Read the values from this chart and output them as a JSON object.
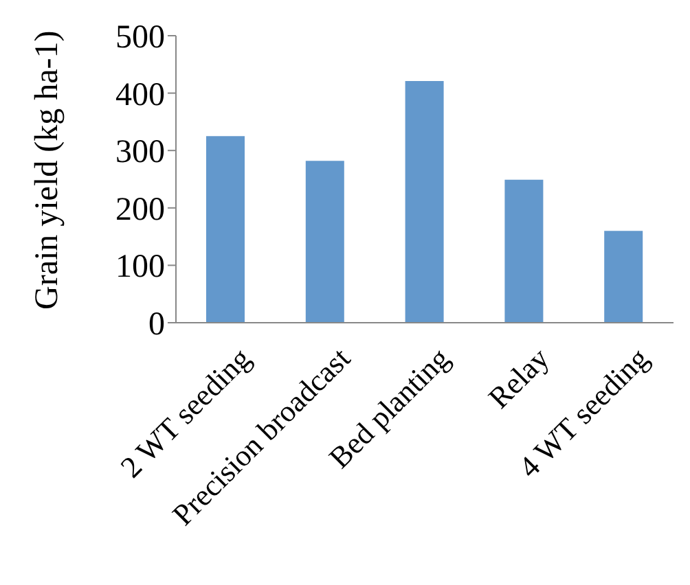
{
  "chart_data": {
    "type": "bar",
    "ylabel": "Grain yield (kg ha-1)",
    "categories": [
      "2 WT seeding",
      "Precision broadcast",
      "Bed planting",
      "Relay",
      "4 WT seeding"
    ],
    "values": [
      325,
      282,
      421,
      249,
      160
    ],
    "color": "#6398cc",
    "ylim": [
      0,
      500
    ],
    "yticks": [
      0,
      100,
      200,
      300,
      400,
      500
    ],
    "grid": false,
    "legend": false
  }
}
